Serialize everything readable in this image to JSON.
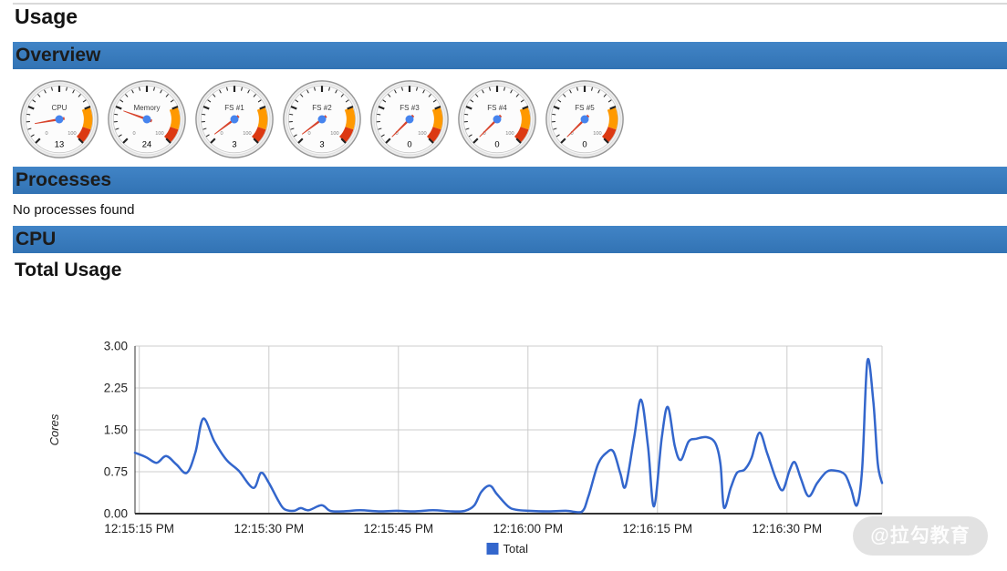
{
  "page": {
    "title": "Usage",
    "watermark": "@拉勾教育"
  },
  "sections": {
    "overview": {
      "label": "Overview"
    },
    "processes": {
      "label": "Processes",
      "empty_text": "No processes found"
    },
    "cpu": {
      "label": "CPU",
      "chart_title": "Total Usage"
    }
  },
  "gauges": {
    "scale": {
      "min": 0,
      "max": 100,
      "min_label": "0",
      "max_label": "100",
      "yellow_from": 75,
      "yellow_to": 90,
      "red_from": 90,
      "red_to": 100
    },
    "items": [
      {
        "label": "CPU",
        "value": 13
      },
      {
        "label": "Memory",
        "value": 24
      },
      {
        "label": "FS #1",
        "value": 3
      },
      {
        "label": "FS #2",
        "value": 3
      },
      {
        "label": "FS #3",
        "value": 0
      },
      {
        "label": "FS #4",
        "value": 0
      },
      {
        "label": "FS #5",
        "value": 0
      }
    ]
  },
  "colors": {
    "section_bar_top": "#4184c6",
    "section_bar_bottom": "#3273b4",
    "gauge_yellow": "#FF9900",
    "gauge_red": "#DC3912",
    "gauge_needle": "#d8442c",
    "gauge_hub": "#4684ee",
    "line": "#3366cc",
    "grid": "#cccccc",
    "axis": "#333333",
    "axis_text": "#222222"
  },
  "chart_data": {
    "type": "line",
    "title": "Total Usage",
    "ylabel": "Cores",
    "ylim": [
      0,
      3
    ],
    "yticks": [
      {
        "v": 0,
        "label": "0.00"
      },
      {
        "v": 0.75,
        "label": "0.75"
      },
      {
        "v": 1.5,
        "label": "1.50"
      },
      {
        "v": 2.25,
        "label": "2.25"
      },
      {
        "v": 3,
        "label": "3.00"
      }
    ],
    "x_unit": "seconds after 12:15:00 PM",
    "x_domain": [
      14.5,
      101
    ],
    "xticks": [
      {
        "t": 15,
        "label": "12:15:15 PM"
      },
      {
        "t": 30,
        "label": "12:15:30 PM"
      },
      {
        "t": 45,
        "label": "12:15:45 PM"
      },
      {
        "t": 60,
        "label": "12:16:00 PM"
      },
      {
        "t": 75,
        "label": "12:16:15 PM"
      },
      {
        "t": 90,
        "label": "12:16:30 PM"
      }
    ],
    "grid": true,
    "legend_position": "bottom",
    "legend": [
      {
        "label": "Total",
        "color": "#3366cc"
      }
    ],
    "series": [
      {
        "name": "Total",
        "color": "#3366cc",
        "points": [
          [
            14.5,
            1.09
          ],
          [
            15.8,
            1.01
          ],
          [
            17.0,
            0.91
          ],
          [
            18.1,
            1.03
          ],
          [
            19.3,
            0.88
          ],
          [
            20.5,
            0.73
          ],
          [
            21.5,
            1.1
          ],
          [
            22.4,
            1.7
          ],
          [
            23.7,
            1.29
          ],
          [
            25.1,
            0.96
          ],
          [
            26.5,
            0.77
          ],
          [
            28.2,
            0.46
          ],
          [
            29.1,
            0.73
          ],
          [
            30.0,
            0.55
          ],
          [
            31.1,
            0.23
          ],
          [
            31.8,
            0.08
          ],
          [
            32.9,
            0.05
          ],
          [
            33.7,
            0.1
          ],
          [
            34.6,
            0.06
          ],
          [
            36.1,
            0.15
          ],
          [
            37.1,
            0.05
          ],
          [
            38.5,
            0.04
          ],
          [
            40.6,
            0.06
          ],
          [
            42.7,
            0.04
          ],
          [
            44.8,
            0.05
          ],
          [
            46.9,
            0.04
          ],
          [
            49.0,
            0.06
          ],
          [
            51.2,
            0.04
          ],
          [
            52.7,
            0.05
          ],
          [
            53.8,
            0.15
          ],
          [
            54.6,
            0.39
          ],
          [
            55.6,
            0.5
          ],
          [
            56.4,
            0.35
          ],
          [
            57.7,
            0.13
          ],
          [
            58.6,
            0.07
          ],
          [
            60.1,
            0.05
          ],
          [
            62.2,
            0.04
          ],
          [
            64.4,
            0.05
          ],
          [
            66.2,
            0.03
          ],
          [
            67.0,
            0.31
          ],
          [
            68.1,
            0.88
          ],
          [
            69.1,
            1.09
          ],
          [
            69.9,
            1.11
          ],
          [
            70.7,
            0.72
          ],
          [
            71.3,
            0.49
          ],
          [
            72.3,
            1.37
          ],
          [
            73.1,
            2.04
          ],
          [
            73.9,
            1.21
          ],
          [
            74.6,
            0.13
          ],
          [
            75.5,
            1.37
          ],
          [
            76.2,
            1.91
          ],
          [
            77.0,
            1.21
          ],
          [
            77.7,
            0.96
          ],
          [
            78.6,
            1.29
          ],
          [
            79.5,
            1.34
          ],
          [
            80.7,
            1.37
          ],
          [
            81.7,
            1.26
          ],
          [
            82.3,
            0.88
          ],
          [
            82.7,
            0.11
          ],
          [
            83.5,
            0.47
          ],
          [
            84.2,
            0.73
          ],
          [
            85.1,
            0.79
          ],
          [
            85.9,
            1.0
          ],
          [
            86.8,
            1.45
          ],
          [
            87.7,
            1.08
          ],
          [
            88.7,
            0.63
          ],
          [
            89.5,
            0.42
          ],
          [
            90.3,
            0.78
          ],
          [
            90.9,
            0.92
          ],
          [
            91.6,
            0.63
          ],
          [
            92.5,
            0.31
          ],
          [
            93.5,
            0.55
          ],
          [
            94.6,
            0.75
          ],
          [
            95.6,
            0.77
          ],
          [
            96.7,
            0.7
          ],
          [
            97.4,
            0.45
          ],
          [
            98.1,
            0.15
          ],
          [
            98.7,
            0.8
          ],
          [
            99.3,
            2.73
          ],
          [
            100.0,
            2.0
          ],
          [
            100.5,
            0.9
          ],
          [
            101.0,
            0.55
          ]
        ]
      }
    ]
  }
}
